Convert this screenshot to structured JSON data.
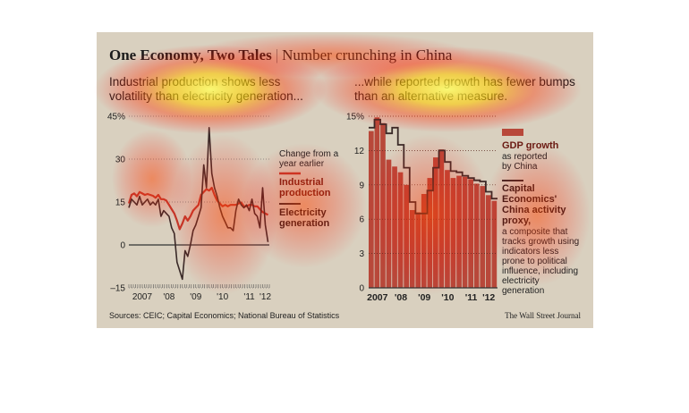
{
  "title_bold": "One Economy, Two Tales",
  "title_rest": "Number crunching in China",
  "left_subtitle": "Industrial production shows less volatility than electricity generation...",
  "right_subtitle": "...while reported growth has fewer bumps than an alternative measure.",
  "source": "Sources: CEIC; Capital Economics; National Bureau of Statistics",
  "credit": "The Wall Street Journal",
  "colors": {
    "panel": "#d9d0bf",
    "industrial": "#c0392b",
    "electricity": "#3a2a28",
    "gdp_bar": "#b8483a",
    "proxy": "#3a2a28",
    "heat": "#ff2a00"
  },
  "chart_data": [
    {
      "type": "line",
      "ylim": [
        -15,
        45
      ],
      "yticks": [
        45,
        30,
        15,
        0,
        -15
      ],
      "ytick_labels": [
        "45%",
        "30",
        "15",
        "0",
        "–15"
      ],
      "xlim": [
        2007,
        2012.25
      ],
      "xtick_labels": [
        {
          "x": 2007.5,
          "label": "2007"
        },
        {
          "x": 2008.5,
          "label": "'08"
        },
        {
          "x": 2009.5,
          "label": "'09"
        },
        {
          "x": 2010.5,
          "label": "'10"
        },
        {
          "x": 2011.5,
          "label": "'11"
        },
        {
          "x": 2012.1,
          "label": "'12"
        }
      ],
      "legend_header": "Change from a year earlier",
      "series": [
        {
          "name": "Industrial production",
          "x": [
            2007.0,
            2007.1,
            2007.2,
            2007.3,
            2007.4,
            2007.5,
            2007.6,
            2007.7,
            2007.8,
            2007.9,
            2008.0,
            2008.1,
            2008.2,
            2008.3,
            2008.4,
            2008.5,
            2008.6,
            2008.7,
            2008.8,
            2008.9,
            2009.0,
            2009.1,
            2009.2,
            2009.3,
            2009.4,
            2009.5,
            2009.6,
            2009.7,
            2009.8,
            2009.9,
            2010.0,
            2010.1,
            2010.2,
            2010.3,
            2010.4,
            2010.5,
            2010.6,
            2010.7,
            2010.8,
            2010.9,
            2011.0,
            2011.1,
            2011.2,
            2011.3,
            2011.4,
            2011.5,
            2011.6,
            2011.7,
            2011.8,
            2011.9,
            2012.0,
            2012.1,
            2012.2
          ],
          "values": [
            14.5,
            17.5,
            18,
            17,
            18.5,
            18,
            17.5,
            17.8,
            17.5,
            17.2,
            16.5,
            17.5,
            16,
            16,
            15.5,
            14,
            12.5,
            11,
            8.5,
            5.5,
            7.5,
            10,
            8.5,
            10,
            12,
            13,
            14,
            17.5,
            18.5,
            19.5,
            19,
            20,
            17.5,
            15.5,
            14.5,
            13.5,
            14,
            13.5,
            14,
            14,
            14,
            14.5,
            14.8,
            13.5,
            13.5,
            14,
            14,
            13.5,
            13.5,
            12.5,
            11.5,
            11,
            10.5
          ]
        },
        {
          "name": "Electricity generation",
          "x": [
            2007.0,
            2007.1,
            2007.2,
            2007.3,
            2007.4,
            2007.5,
            2007.6,
            2007.7,
            2007.8,
            2007.9,
            2008.0,
            2008.1,
            2008.2,
            2008.3,
            2008.4,
            2008.5,
            2008.6,
            2008.7,
            2008.8,
            2008.9,
            2009.0,
            2009.1,
            2009.2,
            2009.3,
            2009.4,
            2009.5,
            2009.6,
            2009.7,
            2009.8,
            2009.9,
            2010.0,
            2010.1,
            2010.2,
            2010.3,
            2010.4,
            2010.5,
            2010.6,
            2010.7,
            2010.8,
            2010.9,
            2011.0,
            2011.1,
            2011.2,
            2011.3,
            2011.4,
            2011.5,
            2011.6,
            2011.7,
            2011.8,
            2011.9,
            2012.0,
            2012.1,
            2012.2
          ],
          "values": [
            13,
            16,
            15,
            14,
            17,
            14,
            15,
            16,
            14,
            15,
            14,
            16,
            10,
            12,
            11,
            10,
            6,
            4,
            -6,
            -9,
            -12,
            -2,
            -4,
            0,
            5,
            7,
            10,
            13,
            28,
            20,
            41,
            25,
            20,
            17,
            13,
            10,
            8,
            6,
            6,
            5,
            12,
            16,
            14,
            13,
            14,
            12,
            16,
            11,
            10,
            6,
            20,
            7,
            1
          ]
        }
      ]
    },
    {
      "type": "bar",
      "ylim": [
        0,
        15
      ],
      "yticks": [
        15,
        12,
        9,
        6,
        3,
        0
      ],
      "ytick_labels": [
        "15%",
        "12",
        "9",
        "6",
        "3",
        "0"
      ],
      "xtick_labels": [
        {
          "index": 1.5,
          "label": "2007"
        },
        {
          "index": 5.5,
          "label": "'08"
        },
        {
          "index": 9.5,
          "label": "'09"
        },
        {
          "index": 13.5,
          "label": "'10"
        },
        {
          "index": 17.5,
          "label": "'11"
        },
        {
          "index": 20.5,
          "label": "'12"
        }
      ],
      "series": [
        {
          "name": "GDP growth",
          "label_detail": "as reported by China",
          "values": [
            13.7,
            14.9,
            14.4,
            11.2,
            10.6,
            10.1,
            9.0,
            6.8,
            6.6,
            8.2,
            9.6,
            11.4,
            12.1,
            10.3,
            9.6,
            9.8,
            9.7,
            9.5,
            9.1,
            8.9,
            8.1,
            7.6
          ]
        },
        {
          "name": "Capital Economics' China activity proxy,",
          "label_detail": "a composite that tracks growth using indicators less prone to political influence, including electricity generation",
          "values": [
            14.0,
            14.7,
            14.3,
            13.5,
            14.0,
            12.5,
            10.5,
            7.5,
            6.5,
            6.5,
            8.5,
            10.5,
            12.0,
            11.0,
            10.2,
            10.1,
            9.8,
            9.6,
            9.4,
            9.3,
            8.4,
            7.8
          ]
        }
      ]
    }
  ]
}
